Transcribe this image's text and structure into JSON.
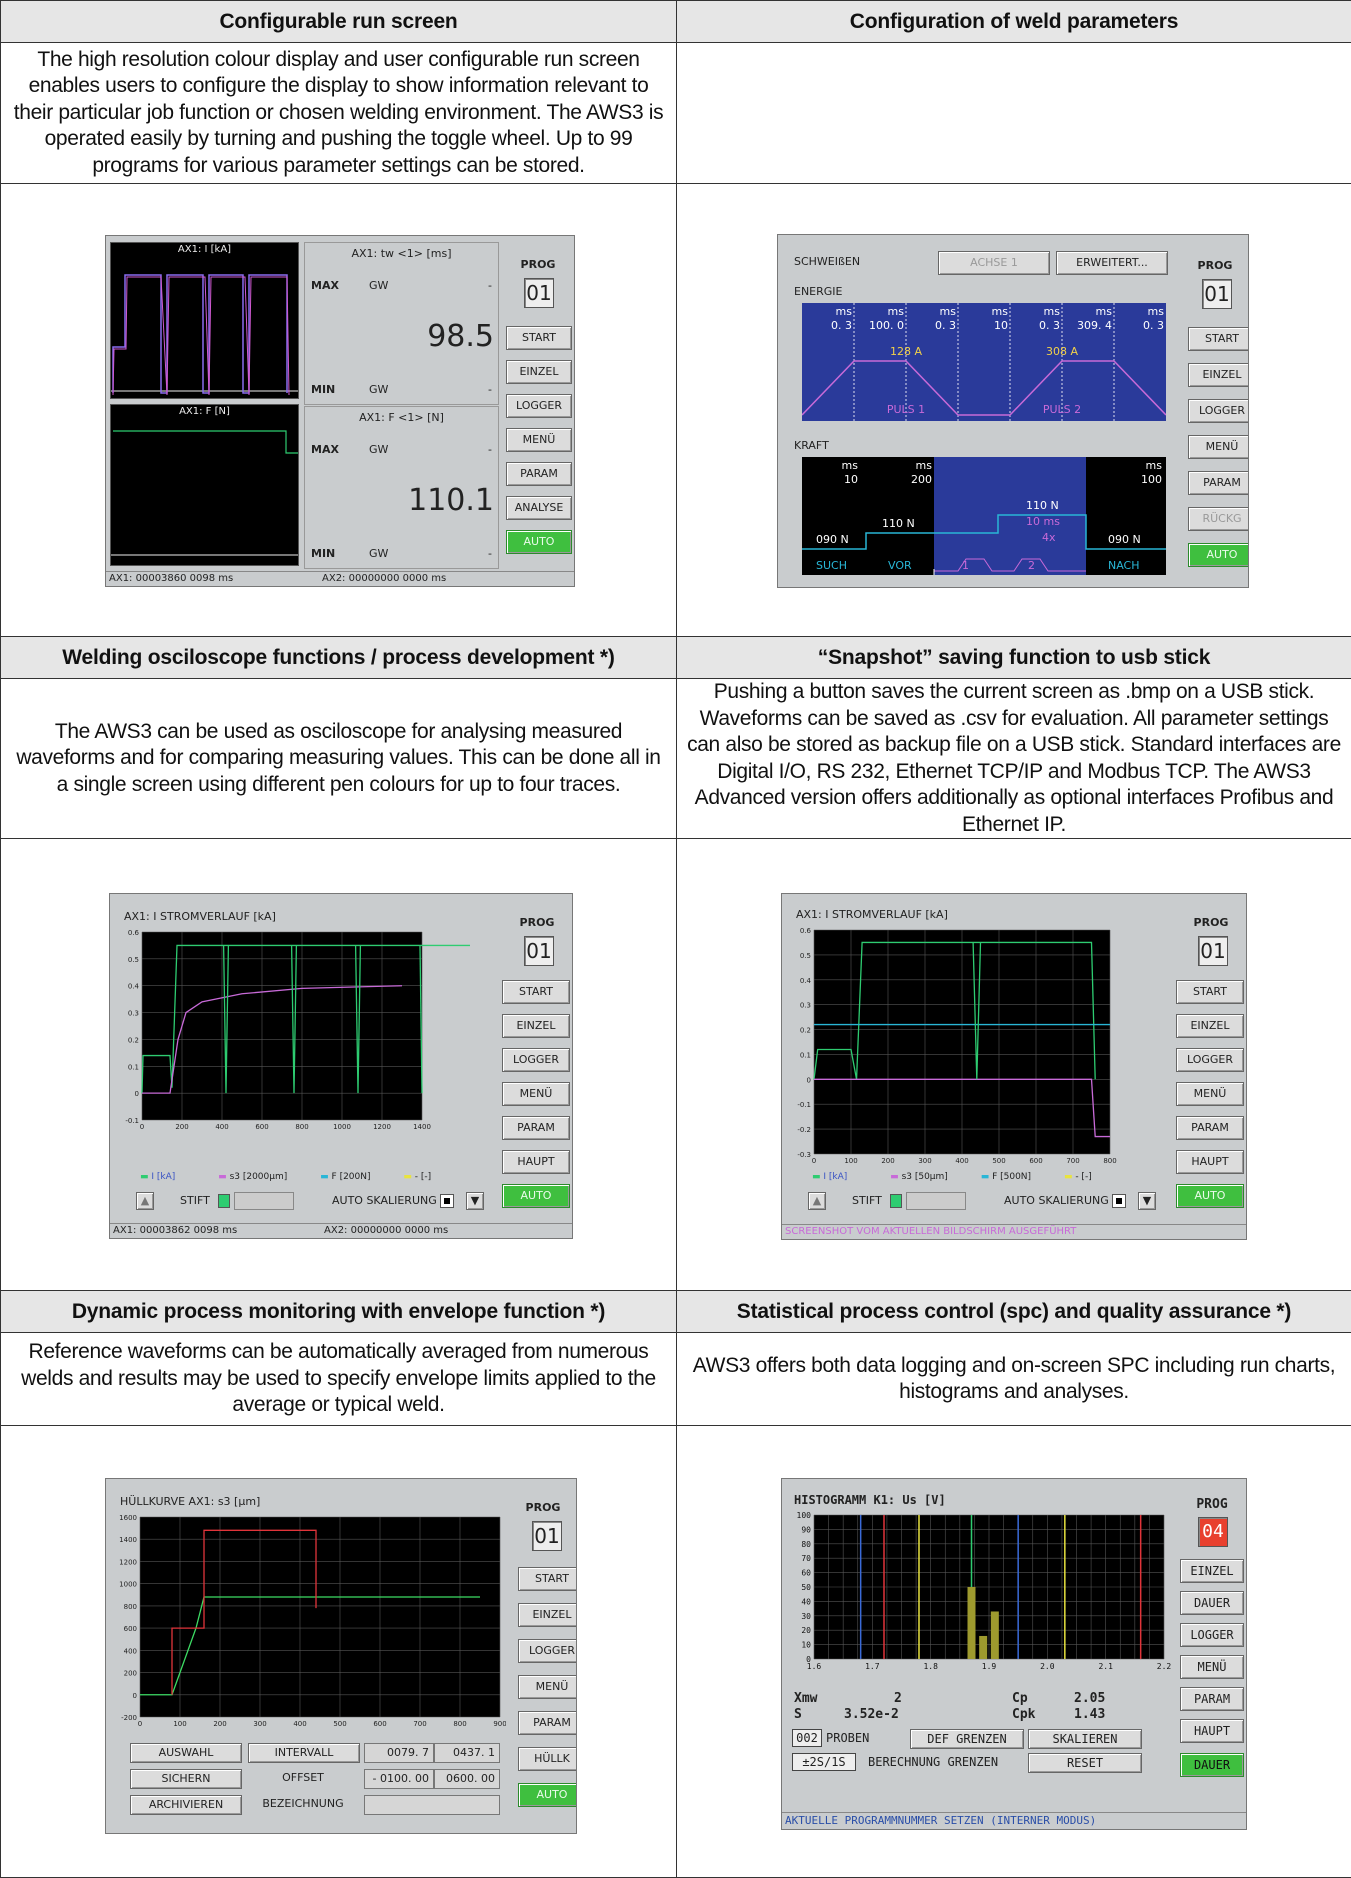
{
  "sections": [
    {
      "title": "Configurable run screen",
      "text": "The high resolution colour display and user configurable run screen enables users to configure the display to show information relevant to their particular job function or chosen welding environment. The AWS3 is operated easily by turning and pushing the toggle wheel. Up to 99 programs for various parameter settings can be stored."
    },
    {
      "title": "Configuration of weld parameters",
      "text": ""
    },
    {
      "title": "Welding osciloscope functions / process development *)",
      "text": "The AWS3 can be used as osciloscope for analysing measured waveforms and for comparing measuring values. This can be done all in a single screen using different pen colours for up to four traces."
    },
    {
      "title": "“Snapshot” saving function to usb stick",
      "text": "Pushing a button saves the current screen as .bmp on a USB stick. Waveforms can be saved as .csv for evaluation. All parameter settings can also be stored as backup file on a USB stick. Standard interfaces are Digital I/O, RS 232, Ethernet TCP/IP and Modbus TCP. The AWS3 Advanced version offers additionally as optional interfaces  Profibus and Ethernet IP."
    },
    {
      "title": "Dynamic process monitoring with envelope function *)",
      "text": "Reference waveforms can be automatically averaged from numerous welds and results may be used to specify envelope limits applied to the average or typical weld."
    },
    {
      "title": "Statistical process control (spc) and quality assurance *)",
      "text": "AWS3 offers both data logging and on-screen SPC including run charts, histograms and analyses."
    }
  ],
  "screen1": {
    "prog_label": "PROG",
    "prog": "01",
    "buttons": [
      "START",
      "EINZEL",
      "LOGGER",
      "MENÜ",
      "PARAM",
      "ANALYSE",
      "AUTO"
    ],
    "graph_top_title": "AX1: I [kA]",
    "graph_bottom_title": "AX1: F [N]",
    "panel_top_title": "AX1: tw <1> [ms]",
    "panel_top_value": "98.5",
    "panel_bottom_title": "AX1: F <1> [N]",
    "panel_bottom_value": "110.1",
    "max": "MAX",
    "min": "MIN",
    "gw": "GW",
    "dash": "-",
    "status_left": "AX1: 00003860 0098 ms",
    "status_right": "AX2: 00000000 0000 ms"
  },
  "screen2": {
    "title": "SCHWEIßEN",
    "achse": "ACHSE 1",
    "erweitert": "ERWEITERT...",
    "energie": "ENERGIE",
    "kraft": "KRAFT",
    "prog_label": "PROG",
    "prog": "01",
    "buttons": [
      "START",
      "EINZEL",
      "LOGGER",
      "MENÜ",
      "PARAM",
      "RÜCKG",
      "AUTO"
    ],
    "energy_ms": [
      "ms",
      "ms",
      "ms",
      "ms",
      "ms",
      "ms",
      "ms"
    ],
    "energy_vals": [
      "0. 3",
      "100. 0",
      "0. 3",
      "10",
      "0. 3",
      "309. 4",
      "0. 3"
    ],
    "puls1_current": "128 A",
    "puls2_current": "308 A",
    "puls1": "PULS 1",
    "puls2": "PULS 2",
    "kraft_ms": [
      "ms",
      "ms",
      "ms"
    ],
    "kraft_vals": [
      "10",
      "200",
      "100"
    ],
    "f_suche": "090 N",
    "f_vor": "110 N",
    "f_mid": "110 N",
    "f_nach": "090 N",
    "mid_ms": "10 ms",
    "mid_x": "4x",
    "lbl_such": "SUCH",
    "lbl_vor": "VOR",
    "lbl_1": "1",
    "lbl_2": "2",
    "lbl_nach": "NACH"
  },
  "screen3": {
    "title": "AX1:  I STROMVERLAUF [kA]",
    "prog_label": "PROG",
    "prog": "01",
    "buttons": [
      "START",
      "EINZEL",
      "LOGGER",
      "MENÜ",
      "PARAM",
      "HAUPT",
      "AUTO"
    ],
    "legend": [
      "I [kA]",
      "s3 [2000µm]",
      "F [200N]",
      "- [-]"
    ],
    "stift": "STIFT",
    "auto_skal": "AUTO SKALIERUNG",
    "status_left": "AX1: 00003862 0098 ms",
    "status_right": "AX2: 00000000 0000 ms"
  },
  "screen4": {
    "title": "AX1:  I STROMVERLAUF [kA]",
    "prog_label": "PROG",
    "prog": "01",
    "buttons": [
      "START",
      "EINZEL",
      "LOGGER",
      "MENÜ",
      "PARAM",
      "HAUPT",
      "AUTO"
    ],
    "legend": [
      "I [kA]",
      "s3 [50µm]",
      "F [500N]",
      "- [-]"
    ],
    "stift": "STIFT",
    "auto_skal": "AUTO SKALIERUNG",
    "status": "SCREENSHOT VOM AKTUELLEN BILDSCHIRM AUSGEFÜHRT"
  },
  "screen5": {
    "title": "HÜLLKURVE AX1:  s3 [µm]",
    "prog_label": "PROG",
    "prog": "01",
    "buttons": [
      "START",
      "EINZEL",
      "LOGGER",
      "MENÜ",
      "PARAM",
      "HÜLLK",
      "AUTO"
    ],
    "row1": [
      "AUSWAHL",
      "INTERVALL",
      "0079. 7",
      "0437. 1"
    ],
    "row2": [
      "SICHERN",
      "OFFSET",
      "- 0100. 00",
      "0600. 00"
    ],
    "row3": [
      "ARCHIVIEREN",
      "BEZEICHNUNG"
    ]
  },
  "screen6": {
    "title": "HISTOGRAMM K1: Us [V]",
    "prog_label": "PROG",
    "prog": "04",
    "buttons": [
      "EINZEL",
      "DAUER",
      "LOGGER",
      "MENÜ",
      "PARAM",
      "HAUPT",
      "DAUER"
    ],
    "xmw": "Xmw",
    "xmw_val": "2",
    "cp": "Cp",
    "cp_val": "2.05",
    "s": "S",
    "s_val": "3.52e-2",
    "cpk": "Cpk",
    "cpk_val": "1.43",
    "proben_n": "002",
    "proben": "PROBEN",
    "def_grenzen": "DEF GRENZEN",
    "skalieren": "SKALIEREN",
    "sigma": "±2S/1S",
    "berechnung": "BERECHNUNG GRENZEN",
    "reset": "RESET",
    "status": "AKTUELLE PROGRAMMNUMMER SETZEN (INTERNER MODUS)"
  },
  "chart_data": [
    {
      "type": "line",
      "title": "AX1:  I STROMVERLAUF [kA]",
      "xlim": [
        0,
        1400
      ],
      "ylim": [
        -0.1,
        0.6
      ],
      "x_ticks": [
        0,
        200,
        400,
        600,
        800,
        1000,
        1200,
        1400
      ],
      "y_ticks": [
        -0.1,
        0,
        0.1,
        0.2,
        0.3,
        0.4,
        0.5,
        0.6
      ],
      "series": [
        {
          "name": "I [kA]",
          "color": "#2ecc71",
          "x": [
            0,
            5,
            10,
            140,
            150,
            175,
            190,
            600,
            615,
            620,
            625,
            640,
            1640
          ],
          "y": [
            0,
            0.14,
            0.14,
            0.14,
            0.02,
            0.55,
            0.55,
            0.55,
            0.55,
            0.55,
            0.55,
            0.55,
            0.55
          ]
        },
        {
          "name": "s3 [2000µm]",
          "color": "#c86ad8",
          "x": [
            0,
            140,
            180,
            220,
            300,
            500,
            800,
            1300
          ],
          "y": [
            0,
            0,
            0.2,
            0.3,
            0.34,
            0.37,
            0.39,
            0.4
          ]
        }
      ]
    },
    {
      "type": "line",
      "title": "AX1:  I STROMVERLAUF [kA]",
      "xlim": [
        0,
        800
      ],
      "ylim": [
        -0.3,
        0.6
      ],
      "x_ticks": [
        0,
        100,
        200,
        300,
        400,
        500,
        600,
        700,
        800
      ],
      "y_ticks": [
        -0.3,
        -0.2,
        -0.1,
        0,
        0.1,
        0.2,
        0.3,
        0.4,
        0.5,
        0.6
      ],
      "series": [
        {
          "name": "I [kA]",
          "color": "#2ecc71",
          "x": [
            0,
            10,
            100,
            115,
            130,
            440,
            750,
            760
          ],
          "y": [
            0,
            0.12,
            0.12,
            0,
            0.55,
            0.55,
            0.55,
            0
          ]
        },
        {
          "name": "F [500N]",
          "color": "#29b6d6",
          "x": [
            0,
            800
          ],
          "y": [
            0.22,
            0.22
          ]
        },
        {
          "name": "s3 [50µm]",
          "color": "#c86ad8",
          "x": [
            0,
            750,
            760,
            800
          ],
          "y": [
            0,
            0,
            -0.23,
            -0.23
          ]
        }
      ]
    },
    {
      "type": "line",
      "title": "HÜLLKURVE AX1:  s3 [µm]",
      "xlim": [
        0,
        900
      ],
      "ylim": [
        -200,
        1600
      ],
      "x_ticks": [
        0,
        100,
        200,
        300,
        400,
        500,
        600,
        700,
        800,
        900
      ],
      "y_ticks": [
        -200,
        0,
        200,
        400,
        600,
        800,
        1000,
        1200,
        1400,
        1600
      ],
      "series": [
        {
          "name": "s3",
          "color": "#3ddc64",
          "x": [
            0,
            80,
            140,
            160,
            850
          ],
          "y": [
            0,
            0,
            600,
            880,
            880
          ]
        },
        {
          "name": "envelope",
          "color": "#e0343a",
          "x": [
            80,
            80,
            160,
            160,
            440,
            440
          ],
          "y": [
            0,
            600,
            600,
            1480,
            1480,
            780
          ]
        }
      ]
    },
    {
      "type": "bar",
      "title": "HISTOGRAMM K1: Us [V]",
      "xlim": [
        1.6,
        2.2
      ],
      "ylim": [
        0,
        100
      ],
      "x_ticks": [
        1.6,
        1.7,
        1.8,
        1.9,
        2.0,
        2.1,
        2.2
      ],
      "y_ticks": [
        0,
        10,
        20,
        30,
        40,
        50,
        60,
        70,
        80,
        90,
        100
      ],
      "categories": [
        1.87,
        1.89,
        1.91
      ],
      "values": [
        50,
        16,
        33
      ]
    }
  ]
}
